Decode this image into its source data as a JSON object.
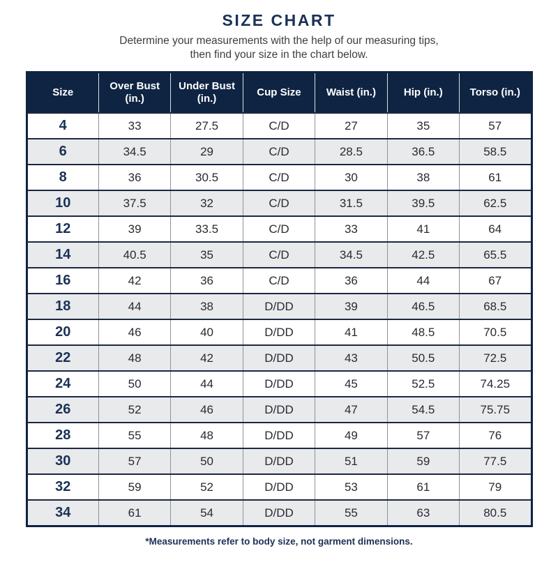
{
  "page": {
    "title": "SIZE CHART",
    "subtitle_line1": "Determine your measurements with the help of our measuring tips,",
    "subtitle_line2": "then find your size in the chart below.",
    "footnote": "*Measurements refer to body size, not garment dimensions."
  },
  "colors": {
    "navy_header": "#0f2443",
    "navy_text": "#1b3156",
    "row_alt_gray": "#e8eaec",
    "body_text": "#2a2a31"
  },
  "chart_data": {
    "type": "table",
    "title": "SIZE CHART",
    "columns": [
      "Size",
      "Over Bust (in.)",
      "Under Bust (in.)",
      "Cup Size",
      "Waist (in.)",
      "Hip (in.)",
      "Torso (in.)"
    ],
    "rows": [
      [
        "4",
        "33",
        "27.5",
        "C/D",
        "27",
        "35",
        "57"
      ],
      [
        "6",
        "34.5",
        "29",
        "C/D",
        "28.5",
        "36.5",
        "58.5"
      ],
      [
        "8",
        "36",
        "30.5",
        "C/D",
        "30",
        "38",
        "61"
      ],
      [
        "10",
        "37.5",
        "32",
        "C/D",
        "31.5",
        "39.5",
        "62.5"
      ],
      [
        "12",
        "39",
        "33.5",
        "C/D",
        "33",
        "41",
        "64"
      ],
      [
        "14",
        "40.5",
        "35",
        "C/D",
        "34.5",
        "42.5",
        "65.5"
      ],
      [
        "16",
        "42",
        "36",
        "C/D",
        "36",
        "44",
        "67"
      ],
      [
        "18",
        "44",
        "38",
        "D/DD",
        "39",
        "46.5",
        "68.5"
      ],
      [
        "20",
        "46",
        "40",
        "D/DD",
        "41",
        "48.5",
        "70.5"
      ],
      [
        "22",
        "48",
        "42",
        "D/DD",
        "43",
        "50.5",
        "72.5"
      ],
      [
        "24",
        "50",
        "44",
        "D/DD",
        "45",
        "52.5",
        "74.25"
      ],
      [
        "26",
        "52",
        "46",
        "D/DD",
        "47",
        "54.5",
        "75.75"
      ],
      [
        "28",
        "55",
        "48",
        "D/DD",
        "49",
        "57",
        "76"
      ],
      [
        "30",
        "57",
        "50",
        "D/DD",
        "51",
        "59",
        "77.5"
      ],
      [
        "32",
        "59",
        "52",
        "D/DD",
        "53",
        "61",
        "79"
      ],
      [
        "34",
        "61",
        "54",
        "D/DD",
        "55",
        "63",
        "80.5"
      ]
    ]
  }
}
